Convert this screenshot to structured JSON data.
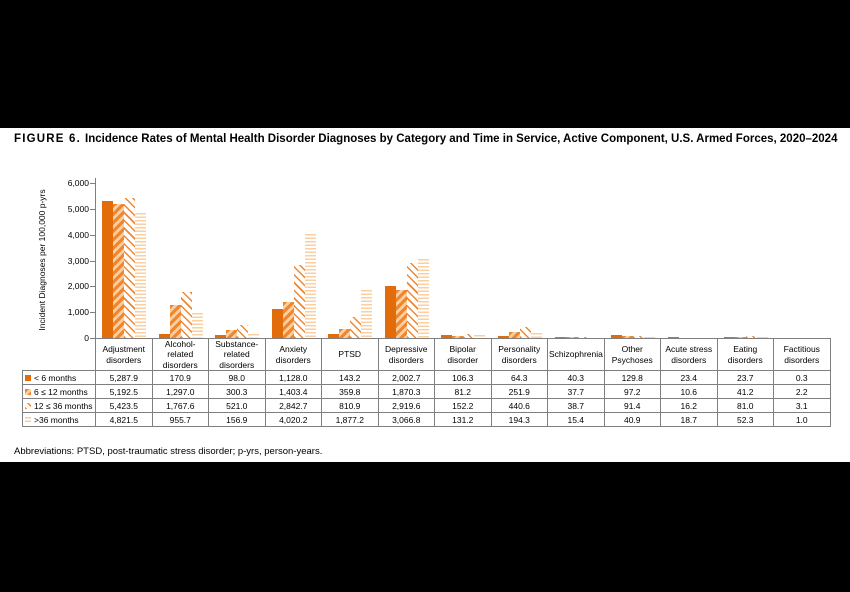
{
  "title": {
    "prefix": "FIGURE 6.",
    "text": "Incidence Rates of Mental Health Disorder Diagnoses by Category and Time in Service, Active Component, U.S. Armed Forces, 2020–2024"
  },
  "footnote": "Abbreviations: PTSD, post-traumatic stress disorder; p-yrs, person-years.",
  "chart_data": {
    "type": "bar",
    "title": "FIGURE 6. Incidence Rates of Mental Health Disorder Diagnoses by Category and Time in Service, Active Component, U.S. Armed Forces, 2020–2024",
    "xlabel": "",
    "ylabel": "Incident Diagnoses per 100,000 p-yrs",
    "ylim": [
      0,
      6000
    ],
    "ytick_step": 1000,
    "ytick_labels": [
      "0",
      "1,000",
      "2,000",
      "3,000",
      "4,000",
      "5,000",
      "6,000"
    ],
    "grid": false,
    "legend_position": "table-row-labels-left",
    "decimals": 1,
    "categories": [
      "Adjustment disorders",
      "Alcohol-related disorders",
      "Substance-related disorders",
      "Anxiety disorders",
      "PTSD",
      "Depressive disorders",
      "Bipolar disorder",
      "Personality disorders",
      "Schizophrenia",
      "Other Psychoses",
      "Acute stress disorders",
      "Eating disorders",
      "Factitious disorders"
    ],
    "series": [
      {
        "name": "< 6 months",
        "pattern": "solid-orange",
        "values": [
          5287.9,
          170.9,
          98.0,
          1128.0,
          143.2,
          2002.7,
          106.3,
          64.3,
          40.3,
          129.8,
          23.4,
          23.7,
          0.3
        ]
      },
      {
        "name": "6 ≤ 12 months",
        "pattern": "diagonal-stripes-forward",
        "values": [
          5192.5,
          1297.0,
          300.3,
          1403.4,
          359.8,
          1870.3,
          81.2,
          251.9,
          37.7,
          97.2,
          10.6,
          41.2,
          2.2
        ]
      },
      {
        "name": "12 ≤ 36 months",
        "pattern": "diagonal-stripes-back-thin",
        "values": [
          5423.5,
          1767.6,
          521.0,
          2842.7,
          810.9,
          2919.6,
          152.2,
          440.6,
          38.7,
          91.4,
          16.2,
          81.0,
          3.1
        ]
      },
      {
        "name": ">36 months",
        "pattern": "horizontal-stripes-light",
        "values": [
          4821.5,
          955.7,
          156.9,
          4020.2,
          1877.2,
          3066.8,
          131.2,
          194.3,
          15.4,
          40.9,
          18.7,
          52.3,
          1.0
        ]
      }
    ],
    "colors": {
      "solid": "#E36C0A",
      "mid": "#F0862F",
      "light": "#FBCFA0",
      "axis": "#7F7F7F"
    }
  }
}
